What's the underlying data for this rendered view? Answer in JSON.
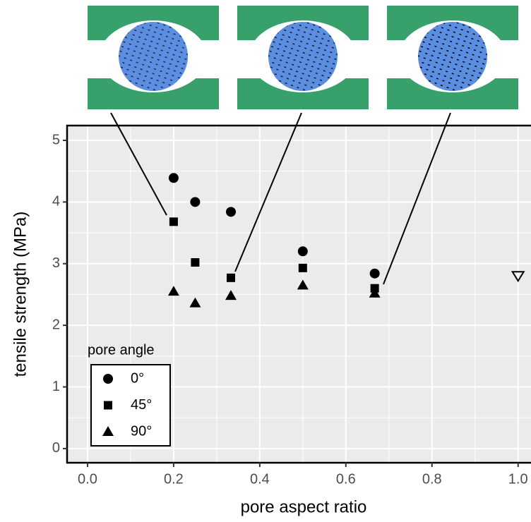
{
  "chart_data": {
    "type": "scatter",
    "xlabel": "pore aspect ratio",
    "ylabel": "tensile strength (MPa)",
    "legend_title": "pore angle",
    "legend_position": "bottom-left",
    "xlim": [
      -0.0475,
      1.03
    ],
    "ylim": [
      -0.23,
      5.24
    ],
    "xticks": [
      {
        "value": 0,
        "label": "0.0"
      },
      {
        "value": 0.2,
        "label": "0.2"
      },
      {
        "value": 0.4,
        "label": "0.4"
      },
      {
        "value": 0.6,
        "label": "0.6"
      },
      {
        "value": 0.8,
        "label": "0.8"
      },
      {
        "value": 1,
        "label": "1.0"
      }
    ],
    "yticks": [
      0,
      1,
      2,
      3,
      4,
      5
    ],
    "grid": true,
    "series": [
      {
        "name": "0°",
        "color": "#000000",
        "marker": "circle",
        "filled": true,
        "x": [
          0.2,
          0.25,
          0.333,
          0.5,
          0.667
        ],
        "values": [
          4.39,
          4.0,
          3.84,
          3.2,
          2.84
        ]
      },
      {
        "name": "45°",
        "color": "#000000",
        "marker": "square",
        "filled": true,
        "x": [
          0.2,
          0.25,
          0.333,
          0.5,
          0.667
        ],
        "values": [
          3.68,
          3.02,
          2.77,
          2.93,
          2.6
        ]
      },
      {
        "name": "90°",
        "color": "#000000",
        "marker": "triangle",
        "filled": true,
        "x": [
          0.2,
          0.25,
          0.333,
          0.5,
          0.667
        ],
        "values": [
          2.55,
          2.36,
          2.48,
          2.65,
          2.52
        ]
      },
      {
        "color": "#000000",
        "marker": "triangle-down",
        "filled": false,
        "x": [
          1.0
        ],
        "values": [
          2.8
        ]
      }
    ]
  }
}
